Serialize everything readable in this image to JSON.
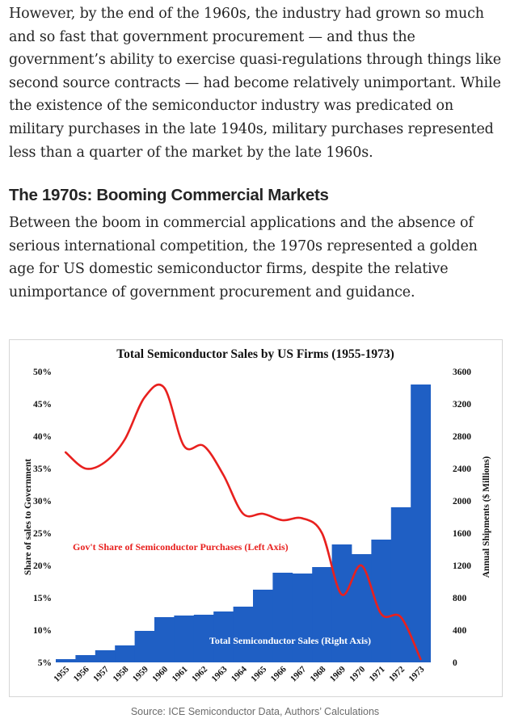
{
  "article": {
    "para1": "However, by the end of the 1960s, the industry had grown so much and so fast that government procurement — and thus the government’s ability to exercise quasi-regulations through things like second source contracts — had become relatively unimportant. While the existence of the semiconductor industry was predicated on military purchases in the late 1940s, military purchases represented less than a quarter of the market by the late 1960s.",
    "heading": "The 1970s: Booming Commercial Markets",
    "para2": "Between the boom in commercial applications and the absence of serious international competition, the 1970s represented a golden age for US domestic semiconductor firms, despite the relative unimportance of government procurement and guidance.",
    "caption": "Source: ICE Semiconductor Data, Authors’ Calculations"
  },
  "chart_data": {
    "type": "bar+line",
    "title": "Total Semiconductor Sales by US Firms (1955-1973)",
    "categories": [
      "1955",
      "1956",
      "1957",
      "1958",
      "1959",
      "1960",
      "1961",
      "1962",
      "1963",
      "1964",
      "1965",
      "1966",
      "1967",
      "1968",
      "1969",
      "1970",
      "1971",
      "1972",
      "1973"
    ],
    "left_axis": {
      "label": "Share of sales to Government",
      "ticks": [
        "5%",
        "10%",
        "15%",
        "20%",
        "25%",
        "30%",
        "35%",
        "40%",
        "45%",
        "50%"
      ],
      "range": [
        5,
        50
      ]
    },
    "right_axis": {
      "label": "Annual Shipments ($ Millions)",
      "ticks": [
        "0",
        "400",
        "800",
        "1200",
        "1600",
        "2000",
        "2400",
        "2800",
        "3200",
        "3600"
      ],
      "range": [
        0,
        3600
      ]
    },
    "series": [
      {
        "name": "Total Semiconductor Sales (Right Axis)",
        "type": "bar",
        "axis": "right",
        "color": "#1f5fc4",
        "values": [
          40,
          90,
          150,
          210,
          390,
          560,
          580,
          590,
          630,
          690,
          900,
          1110,
          1100,
          1180,
          1460,
          1340,
          1520,
          1920,
          3440
        ]
      },
      {
        "name": "Gov't Share of Semiconductor Purchases (Left Axis)",
        "type": "line",
        "axis": "left",
        "color": "#e8201e",
        "values": [
          37.5,
          35,
          36,
          39.5,
          46,
          47.5,
          38.5,
          38.5,
          34,
          28,
          28,
          27,
          27.3,
          25,
          15.5,
          20,
          12.5,
          12,
          5.5
        ]
      }
    ],
    "grid": false,
    "legend": "inline labels"
  }
}
